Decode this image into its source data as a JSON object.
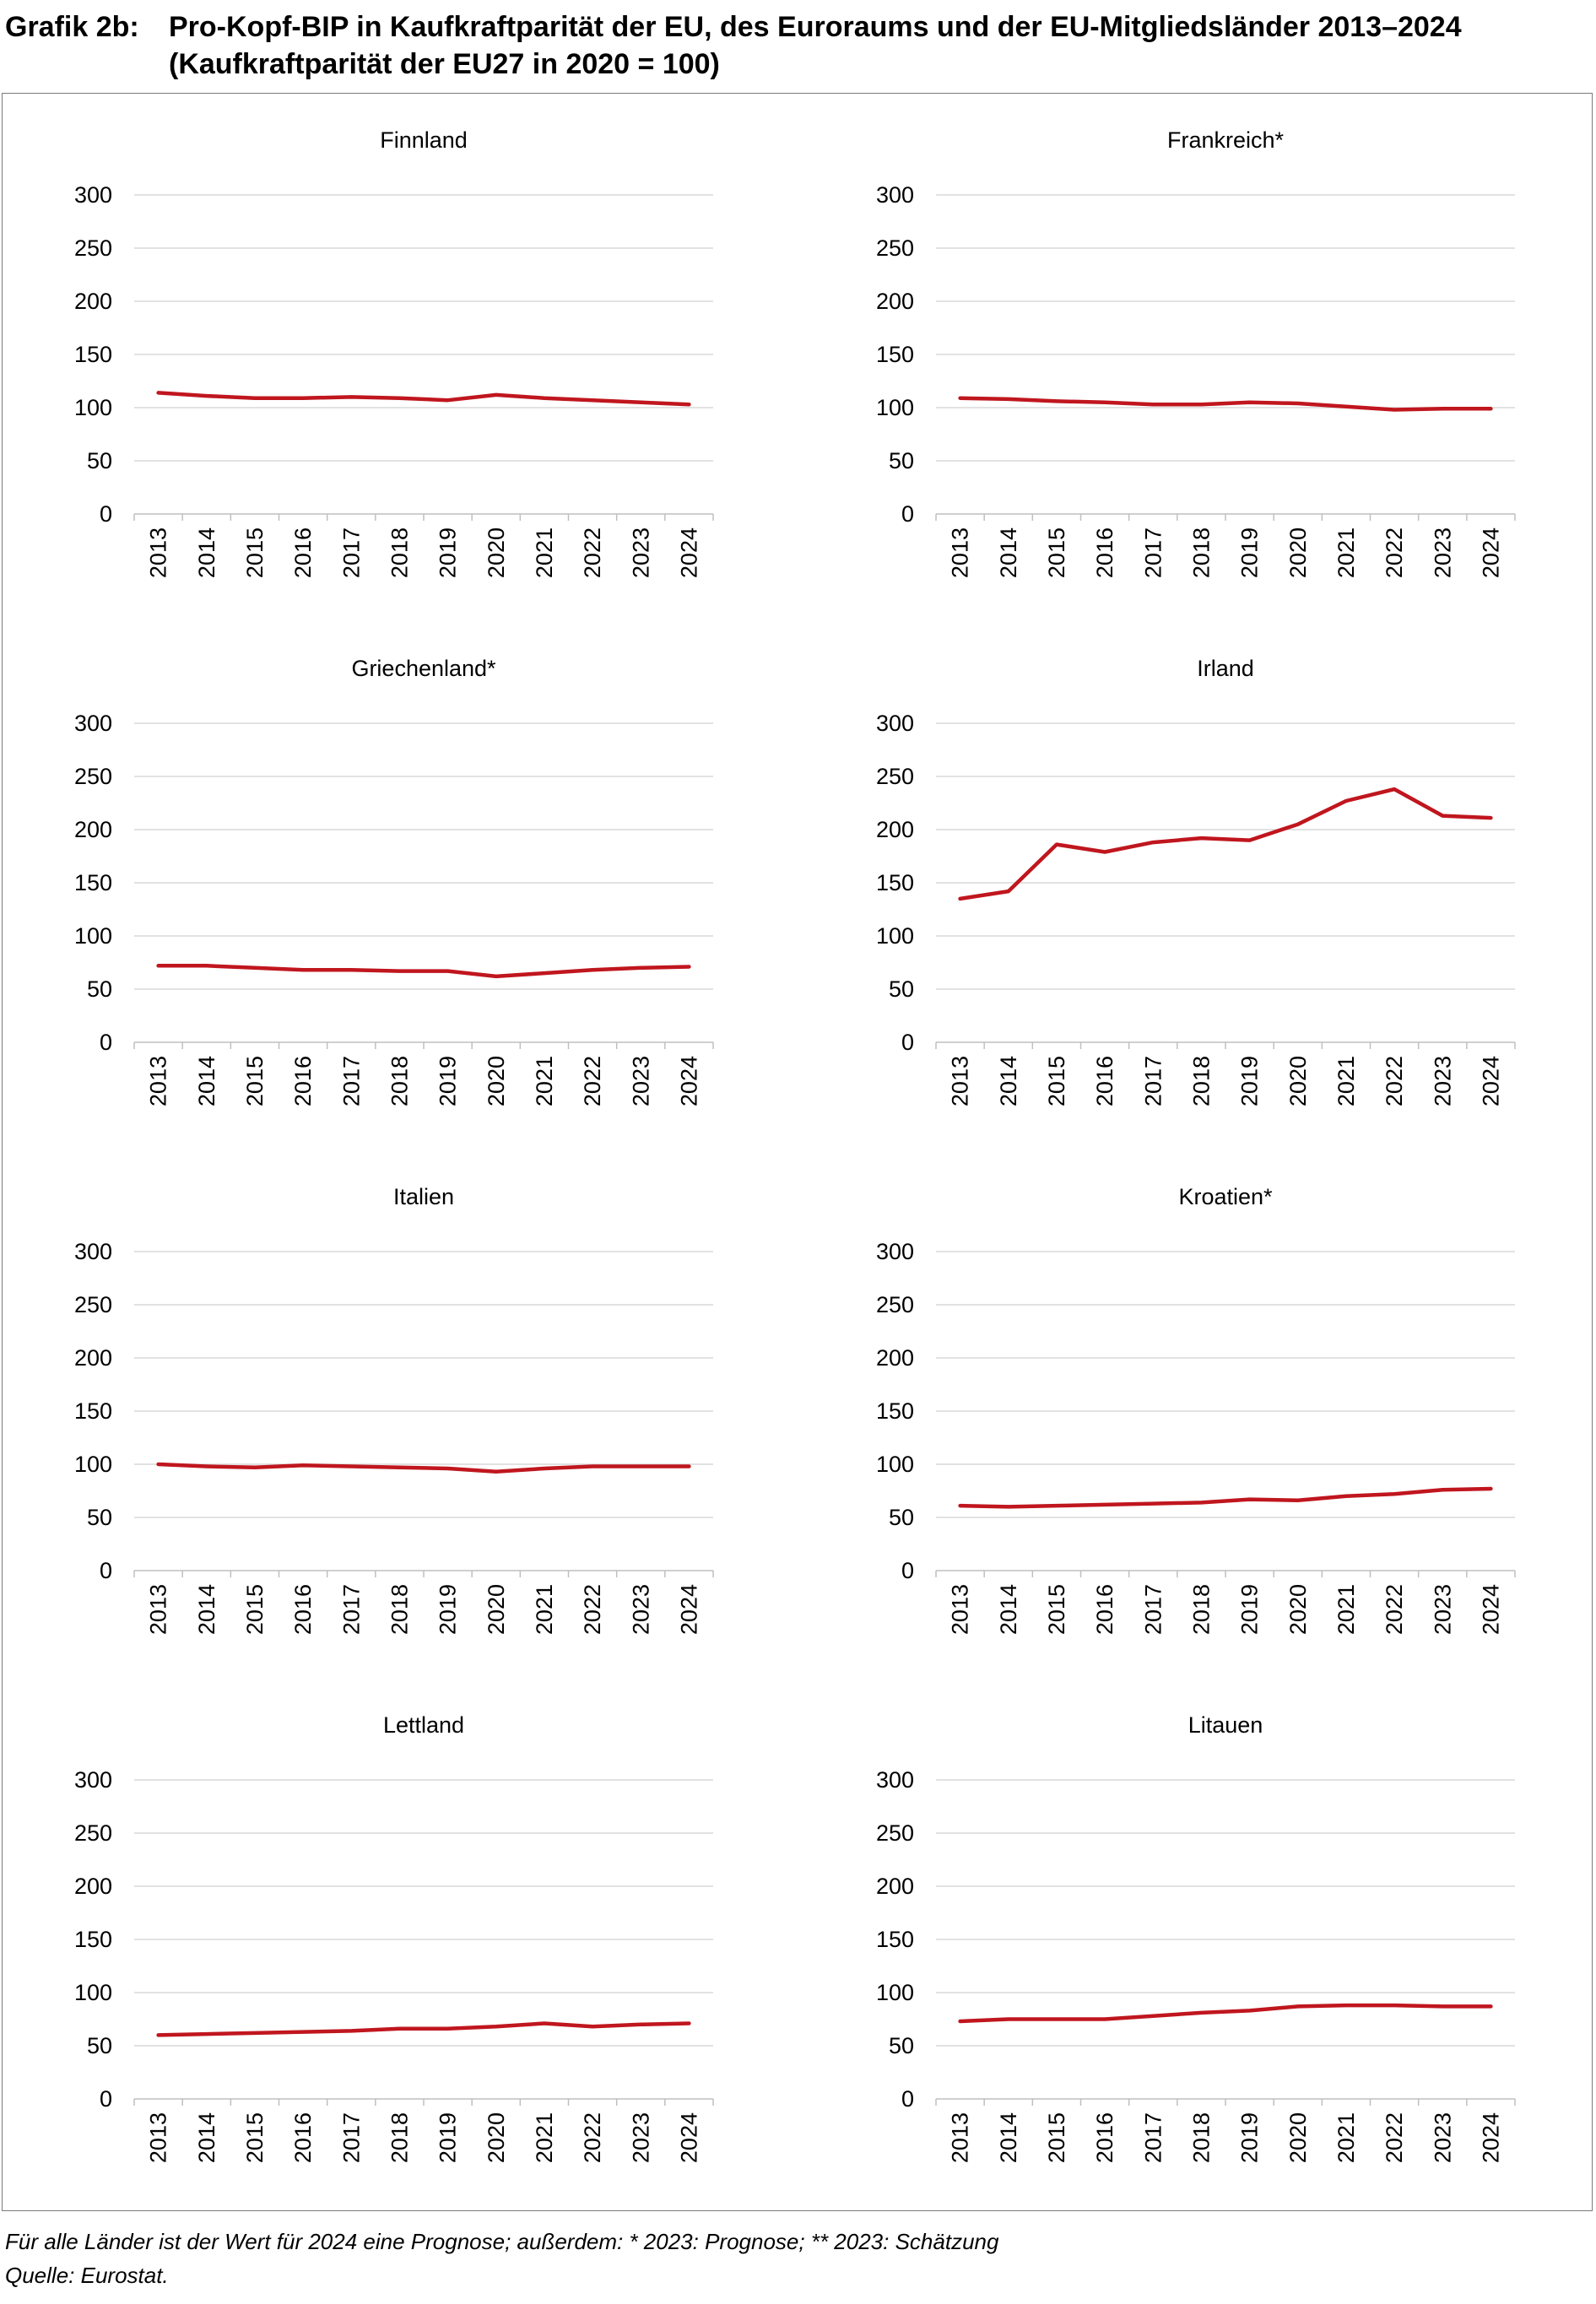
{
  "header": {
    "label": "Grafik 2b:",
    "title_line1": "Pro-Kopf-BIP in Kaufkraftparität der EU, des Euroraums und der EU-Mitgliedsländer 2013–2024",
    "title_line2": "(Kaufkraftparität der EU27 in 2020 = 100)"
  },
  "footer": {
    "note": "Für alle Länder ist der Wert für 2024 eine Prognose; außerdem: * 2023: Prognose; ** 2023: Schätzung",
    "source": "Quelle: Eurostat."
  },
  "colors": {
    "line": "#c0161e",
    "grid": "#d9d9d9"
  },
  "chart_data": [
    {
      "type": "line",
      "title": "Finnland",
      "categories": [
        "2013",
        "2014",
        "2015",
        "2016",
        "2017",
        "2018",
        "2019",
        "2020",
        "2021",
        "2022",
        "2023",
        "2024"
      ],
      "yticks": [
        "0",
        "50",
        "100",
        "150",
        "200",
        "250",
        "300"
      ],
      "ylim": [
        0,
        300
      ],
      "grid": true,
      "values": [
        114,
        111,
        109,
        109,
        110,
        109,
        107,
        112,
        109,
        107,
        105,
        103
      ]
    },
    {
      "type": "line",
      "title": "Frankreich*",
      "categories": [
        "2013",
        "2014",
        "2015",
        "2016",
        "2017",
        "2018",
        "2019",
        "2020",
        "2021",
        "2022",
        "2023",
        "2024"
      ],
      "yticks": [
        "0",
        "50",
        "100",
        "150",
        "200",
        "250",
        "300"
      ],
      "ylim": [
        0,
        300
      ],
      "grid": true,
      "values": [
        109,
        108,
        106,
        105,
        103,
        103,
        105,
        104,
        101,
        98,
        99,
        99
      ]
    },
    {
      "type": "line",
      "title": "Griechenland*",
      "categories": [
        "2013",
        "2014",
        "2015",
        "2016",
        "2017",
        "2018",
        "2019",
        "2020",
        "2021",
        "2022",
        "2023",
        "2024"
      ],
      "yticks": [
        "0",
        "50",
        "100",
        "150",
        "200",
        "250",
        "300"
      ],
      "ylim": [
        0,
        300
      ],
      "grid": true,
      "values": [
        72,
        72,
        70,
        68,
        68,
        67,
        67,
        62,
        65,
        68,
        70,
        71
      ]
    },
    {
      "type": "line",
      "title": "Irland",
      "categories": [
        "2013",
        "2014",
        "2015",
        "2016",
        "2017",
        "2018",
        "2019",
        "2020",
        "2021",
        "2022",
        "2023",
        "2024"
      ],
      "yticks": [
        "0",
        "50",
        "100",
        "150",
        "200",
        "250",
        "300"
      ],
      "ylim": [
        0,
        300
      ],
      "grid": true,
      "values": [
        135,
        142,
        186,
        179,
        188,
        192,
        190,
        205,
        227,
        238,
        213,
        211
      ]
    },
    {
      "type": "line",
      "title": "Italien",
      "categories": [
        "2013",
        "2014",
        "2015",
        "2016",
        "2017",
        "2018",
        "2019",
        "2020",
        "2021",
        "2022",
        "2023",
        "2024"
      ],
      "yticks": [
        "0",
        "50",
        "100",
        "150",
        "200",
        "250",
        "300"
      ],
      "ylim": [
        0,
        300
      ],
      "grid": true,
      "values": [
        100,
        98,
        97,
        99,
        98,
        97,
        96,
        93,
        96,
        98,
        98,
        98
      ]
    },
    {
      "type": "line",
      "title": "Kroatien*",
      "categories": [
        "2013",
        "2014",
        "2015",
        "2016",
        "2017",
        "2018",
        "2019",
        "2020",
        "2021",
        "2022",
        "2023",
        "2024"
      ],
      "yticks": [
        "0",
        "50",
        "100",
        "150",
        "200",
        "250",
        "300"
      ],
      "ylim": [
        0,
        300
      ],
      "grid": true,
      "values": [
        61,
        60,
        61,
        62,
        63,
        64,
        67,
        66,
        70,
        72,
        76,
        77
      ]
    },
    {
      "type": "line",
      "title": "Lettland",
      "categories": [
        "2013",
        "2014",
        "2015",
        "2016",
        "2017",
        "2018",
        "2019",
        "2020",
        "2021",
        "2022",
        "2023",
        "2024"
      ],
      "yticks": [
        "0",
        "50",
        "100",
        "150",
        "200",
        "250",
        "300"
      ],
      "ylim": [
        0,
        300
      ],
      "grid": true,
      "values": [
        60,
        61,
        62,
        63,
        64,
        66,
        66,
        68,
        71,
        68,
        70,
        71
      ]
    },
    {
      "type": "line",
      "title": "Litauen",
      "categories": [
        "2013",
        "2014",
        "2015",
        "2016",
        "2017",
        "2018",
        "2019",
        "2020",
        "2021",
        "2022",
        "2023",
        "2024"
      ],
      "yticks": [
        "0",
        "50",
        "100",
        "150",
        "200",
        "250",
        "300"
      ],
      "ylim": [
        0,
        300
      ],
      "grid": true,
      "values": [
        73,
        75,
        75,
        75,
        78,
        81,
        83,
        87,
        88,
        88,
        87,
        87
      ]
    }
  ]
}
